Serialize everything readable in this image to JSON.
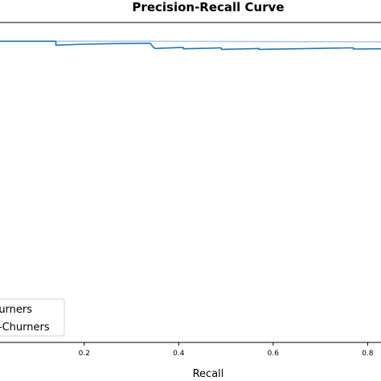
{
  "chart_data": {
    "type": "line",
    "title": "Precision-Recall Curve",
    "xlabel": "Recall",
    "ylabel": "",
    "xlim": [
      0.02,
      0.83
    ],
    "ylim": [
      0.0,
      1.06
    ],
    "x_ticks": [
      0.2,
      0.4,
      0.6,
      0.8
    ],
    "x_tick_labels": [
      "0.2",
      "0.4",
      "0.6",
      "0.8"
    ],
    "grid": false,
    "legend_placement": "bottom-left",
    "legend": [
      "Churners",
      "Non-Churners"
    ],
    "series": [
      {
        "name": "Churners",
        "color": "#1f77b4",
        "x": [
          0.02,
          0.14,
          0.14,
          0.2,
          0.26,
          0.32,
          0.34,
          0.345,
          0.35,
          0.4,
          0.41,
          0.41,
          0.47,
          0.49,
          0.49,
          0.55,
          0.57,
          0.57,
          0.65,
          0.72,
          0.77,
          0.77,
          0.83
        ],
        "y": [
          0.998,
          0.998,
          0.985,
          0.988,
          0.99,
          0.991,
          0.991,
          0.98,
          0.974,
          0.977,
          0.977,
          0.973,
          0.975,
          0.976,
          0.971,
          0.973,
          0.974,
          0.971,
          0.973,
          0.975,
          0.976,
          0.972,
          0.973
        ]
      },
      {
        "name": "Non-Churners",
        "color": "#aec7e8",
        "x": [
          0.02,
          0.3,
          0.6,
          0.83
        ],
        "y": [
          0.998,
          0.998,
          0.997,
          0.996
        ]
      }
    ]
  }
}
